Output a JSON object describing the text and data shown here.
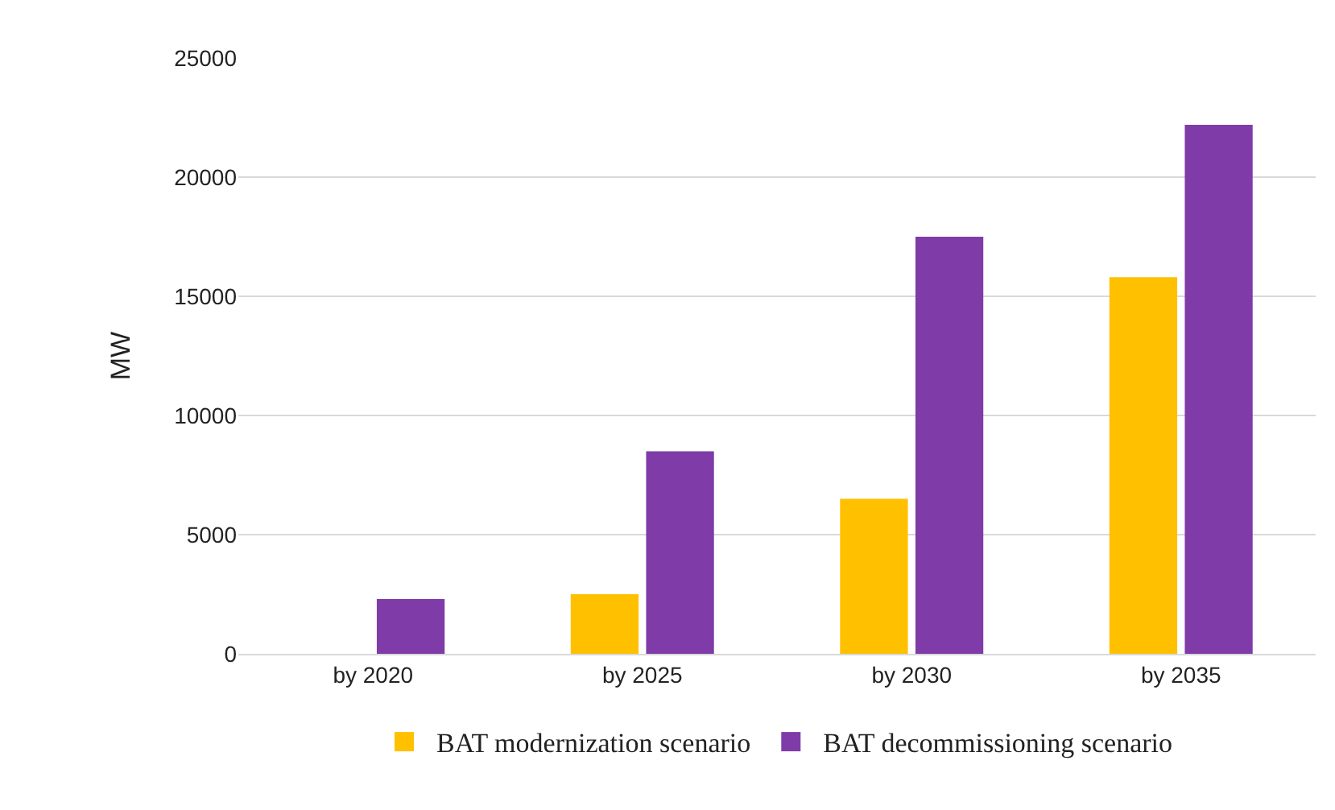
{
  "chart_data": {
    "type": "bar",
    "ylabel": "MW",
    "categories": [
      "by 2020",
      "by 2025",
      "by 2030",
      "by 2035"
    ],
    "series": [
      {
        "name": "BAT modernization scenario",
        "color": "#ffc000",
        "values": [
          0,
          2500,
          6500,
          15800
        ]
      },
      {
        "name": "BAT decommissioning scenario",
        "color": "#7f3ba8",
        "values": [
          2300,
          8500,
          17500,
          22200
        ]
      }
    ],
    "ylim": [
      0,
      25000
    ],
    "yticks": [
      0,
      5000,
      10000,
      15000,
      20000,
      25000
    ],
    "grid": "y",
    "legend": "bottom"
  }
}
